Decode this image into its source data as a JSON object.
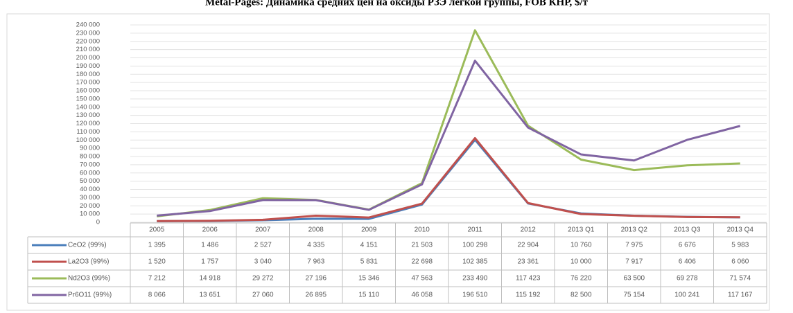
{
  "chart_data": {
    "type": "line",
    "title": "Metal-Pages: Динамика средних цен на оксиды РЗЭ легкой группы, FOB КНР, $/т",
    "categories": [
      "2005",
      "2006",
      "2007",
      "2008",
      "2009",
      "2010",
      "2011",
      "2012",
      "2013 Q1",
      "2013 Q2",
      "2013 Q3",
      "2013 Q4"
    ],
    "series": [
      {
        "name": "CeO2 (99%)",
        "color": "#4a7ebb",
        "values": [
          1395,
          1486,
          2527,
          4335,
          4151,
          21503,
          100298,
          22904,
          10760,
          7975,
          6676,
          5983
        ],
        "value_labels": [
          "1 395",
          "1 486",
          "2 527",
          "4 335",
          "4 151",
          "21 503",
          "100 298",
          "22 904",
          "10 760",
          "7 975",
          "6 676",
          "5 983"
        ]
      },
      {
        "name": "La2O3 (99%)",
        "color": "#c0504d",
        "values": [
          1520,
          1757,
          3040,
          7963,
          5831,
          22698,
          102385,
          23361,
          10000,
          7917,
          6406,
          6060
        ],
        "value_labels": [
          "1 520",
          "1 757",
          "3 040",
          "7 963",
          "5 831",
          "22 698",
          "102 385",
          "23 361",
          "10 000",
          "7 917",
          "6 406",
          "6 060"
        ]
      },
      {
        "name": "Nd2O3 (99%)",
        "color": "#9bbb59",
        "values": [
          7212,
          14918,
          29272,
          27196,
          15346,
          47563,
          233490,
          117423,
          76220,
          63500,
          69278,
          71574
        ],
        "value_labels": [
          "7 212",
          "14 918",
          "29 272",
          "27 196",
          "15 346",
          "47 563",
          "233 490",
          "117 423",
          "76 220",
          "63 500",
          "69 278",
          "71 574"
        ]
      },
      {
        "name": "Pr6O11 (99%)",
        "color": "#8064a2",
        "values": [
          8066,
          13651,
          27060,
          26895,
          15110,
          46058,
          196510,
          115192,
          82500,
          75154,
          100241,
          117167
        ],
        "value_labels": [
          "8 066",
          "13 651",
          "27 060",
          "26 895",
          "15 110",
          "46 058",
          "196 510",
          "115 192",
          "82 500",
          "75 154",
          "100 241",
          "117 167"
        ]
      }
    ],
    "ylim": [
      0,
      240000
    ],
    "yticks": [
      0,
      {
        "value": 10000,
        "label": "10 000"
      },
      {
        "value": 20000,
        "label": "20 000"
      },
      {
        "value": 30000,
        "label": "30 000"
      },
      {
        "value": 40000,
        "label": "40 000"
      },
      {
        "value": 50000,
        "label": "50 000"
      },
      {
        "value": 60000,
        "label": "60 000"
      },
      {
        "value": 70000,
        "label": "70 000"
      },
      {
        "value": 80000,
        "label": "80 000"
      },
      {
        "value": 90000,
        "label": "90 000"
      },
      {
        "value": 100000,
        "label": "100 000"
      },
      {
        "value": 110000,
        "label": "110 000"
      },
      {
        "value": 120000,
        "label": "120 000"
      },
      {
        "value": 130000,
        "label": "130 000"
      },
      {
        "value": 140000,
        "label": "140 000"
      },
      {
        "value": 150000,
        "label": "150 000"
      },
      {
        "value": 160000,
        "label": "160 000"
      },
      {
        "value": 170000,
        "label": "170 000"
      },
      {
        "value": 180000,
        "label": "180 000"
      },
      {
        "value": 190000,
        "label": "190 000"
      },
      {
        "value": 200000,
        "label": "200 000"
      },
      {
        "value": 210000,
        "label": "210 000"
      },
      {
        "value": 220000,
        "label": "220 000"
      },
      {
        "value": 230000,
        "label": "230 000"
      },
      {
        "value": 240000,
        "label": "240 000"
      }
    ],
    "grid": true
  }
}
